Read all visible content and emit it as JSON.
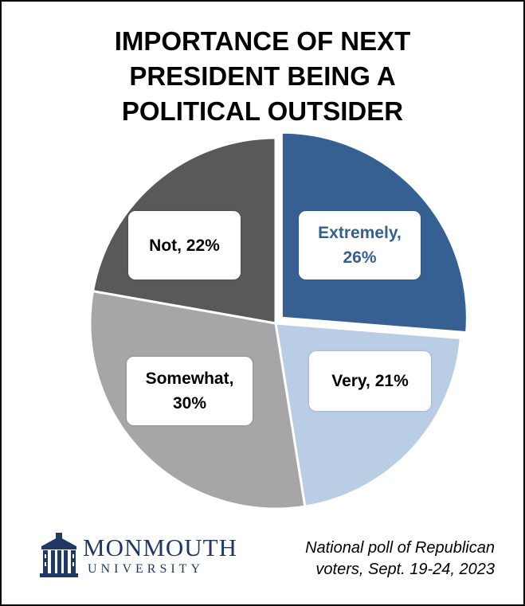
{
  "chart_data": {
    "type": "pie",
    "title": "IMPORTANCE OF NEXT\nPRESIDENT BEING A\nPOLITICAL OUTSIDER",
    "start_angle_deg": 0,
    "direction": "clockwise",
    "slices": [
      {
        "name": "Extremely",
        "value": 26,
        "label": "Extremely,\n26%",
        "color": "#366092",
        "exploded": true
      },
      {
        "name": "Very",
        "value": 21,
        "label": "Very, 21%",
        "color": "#b9cde5",
        "exploded": false
      },
      {
        "name": "Somewhat",
        "value": 30,
        "label": "Somewhat,\n30%",
        "color": "#a6a6a6",
        "exploded": false
      },
      {
        "name": "Not",
        "value": 22,
        "label": "Not, 22%",
        "color": "#595959",
        "exploded": false
      }
    ]
  },
  "source_note": {
    "line1": "National poll of Republican",
    "line2": "voters,  Sept. 19-24, 2023"
  },
  "logo": {
    "name": "MONMOUTH",
    "subtitle": "UNIVERSITY",
    "icon": "monmouth-hall-building-icon",
    "color": "#1f3864"
  }
}
